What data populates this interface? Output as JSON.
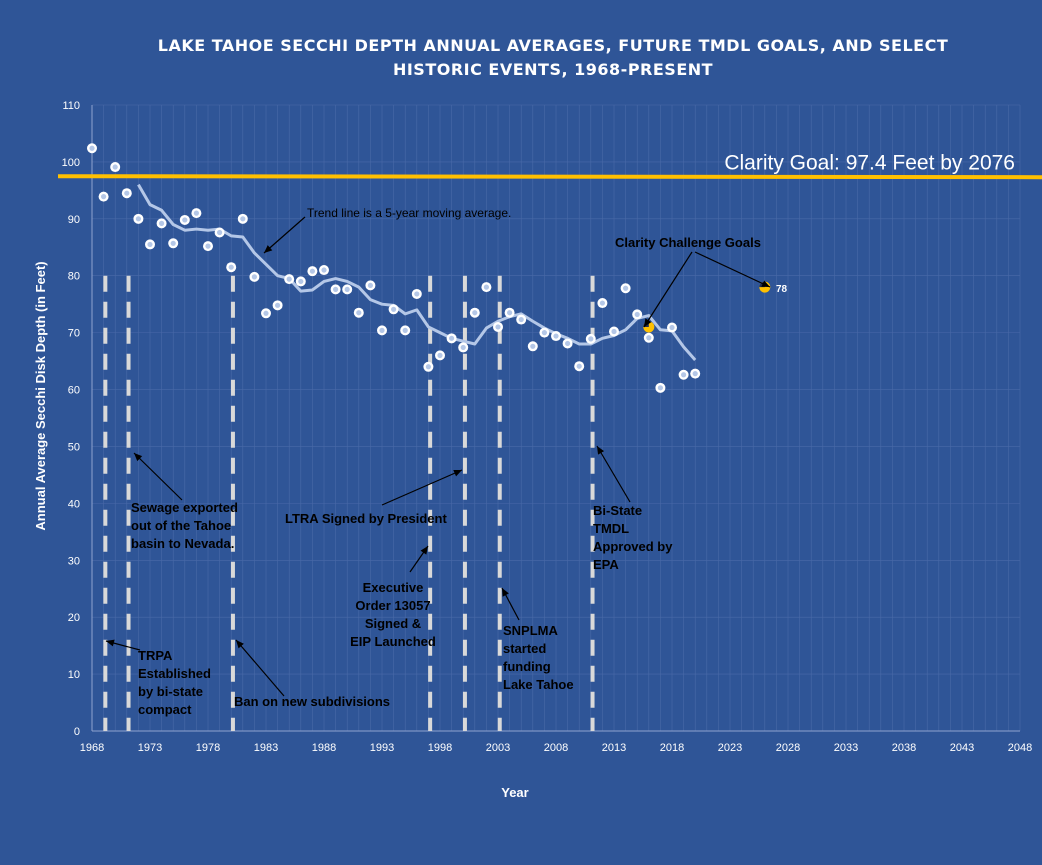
{
  "chart_data": {
    "type": "scatter",
    "title_lines": [
      "LAKE TAHOE SECCHI DEPTH ANNUAL AVERAGES, FUTURE TMDL GOALS, AND SELECT",
      "HISTORIC EVENTS, 1968-PRESENT"
    ],
    "xlabel": "Year",
    "ylabel": "Annual Average Secchi Disk Depth (in Feet)",
    "xlim": [
      1968,
      2048
    ],
    "ylim": [
      0,
      110
    ],
    "x_ticks": [
      1968,
      1973,
      1978,
      1983,
      1988,
      1993,
      1998,
      2003,
      2008,
      2013,
      2018,
      2023,
      2028,
      2033,
      2038,
      2043,
      2048
    ],
    "y_ticks": [
      0,
      10,
      20,
      30,
      40,
      50,
      60,
      70,
      80,
      90,
      100,
      110
    ],
    "grid": true,
    "series": [
      {
        "kind": "annual-average-points",
        "color": "#ffffff",
        "points": [
          [
            1968,
            102.4
          ],
          [
            1969,
            93.9
          ],
          [
            1970,
            99.1
          ],
          [
            1971,
            94.5
          ],
          [
            1972,
            90.0
          ],
          [
            1973,
            85.5
          ],
          [
            1974,
            89.2
          ],
          [
            1975,
            85.7
          ],
          [
            1976,
            89.8
          ],
          [
            1977,
            91.0
          ],
          [
            1978,
            85.2
          ],
          [
            1979,
            87.6
          ],
          [
            1980,
            81.5
          ],
          [
            1981,
            90.0
          ],
          [
            1982,
            79.8
          ],
          [
            1983,
            73.4
          ],
          [
            1984,
            74.8
          ],
          [
            1985,
            79.4
          ],
          [
            1986,
            79.0
          ],
          [
            1987,
            80.8
          ],
          [
            1988,
            81.0
          ],
          [
            1989,
            77.6
          ],
          [
            1990,
            77.6
          ],
          [
            1991,
            73.5
          ],
          [
            1992,
            78.3
          ],
          [
            1993,
            70.4
          ],
          [
            1994,
            74.1
          ],
          [
            1995,
            70.4
          ],
          [
            1996,
            76.8
          ],
          [
            1997,
            64.0
          ],
          [
            1998,
            66.0
          ],
          [
            1999,
            69.0
          ],
          [
            2000,
            67.4
          ],
          [
            2001,
            73.5
          ],
          [
            2002,
            78.0
          ],
          [
            2003,
            71.0
          ],
          [
            2004,
            73.5
          ],
          [
            2005,
            72.3
          ],
          [
            2006,
            67.6
          ],
          [
            2007,
            70.0
          ],
          [
            2008,
            69.4
          ],
          [
            2009,
            68.1
          ],
          [
            2010,
            64.1
          ],
          [
            2011,
            68.9
          ],
          [
            2012,
            75.2
          ],
          [
            2013,
            70.2
          ],
          [
            2014,
            77.8
          ],
          [
            2015,
            73.2
          ],
          [
            2016,
            69.1
          ],
          [
            2017,
            60.3
          ],
          [
            2018,
            70.9
          ],
          [
            2019,
            62.6
          ],
          [
            2020,
            62.8
          ]
        ]
      },
      {
        "kind": "five-year-moving-average",
        "color": "#b4c7e7",
        "points": [
          [
            1972,
            96.0
          ],
          [
            1973,
            92.5
          ],
          [
            1974,
            91.5
          ],
          [
            1975,
            89.0
          ],
          [
            1976,
            88.0
          ],
          [
            1977,
            88.2
          ],
          [
            1978,
            88.0
          ],
          [
            1979,
            88.2
          ],
          [
            1980,
            87.0
          ],
          [
            1981,
            86.8
          ],
          [
            1982,
            84.0
          ],
          [
            1983,
            82.0
          ],
          [
            1984,
            80.0
          ],
          [
            1985,
            79.5
          ],
          [
            1986,
            77.3
          ],
          [
            1987,
            77.5
          ],
          [
            1988,
            79.0
          ],
          [
            1989,
            79.5
          ],
          [
            1990,
            79.0
          ],
          [
            1991,
            78.0
          ],
          [
            1992,
            75.8
          ],
          [
            1993,
            75.0
          ],
          [
            1994,
            74.8
          ],
          [
            1995,
            73.3
          ],
          [
            1996,
            74.0
          ],
          [
            1997,
            71.0
          ],
          [
            1998,
            70.0
          ],
          [
            1999,
            69.0
          ],
          [
            2000,
            68.5
          ],
          [
            2001,
            68.0
          ],
          [
            2002,
            70.8
          ],
          [
            2003,
            72.0
          ],
          [
            2004,
            72.8
          ],
          [
            2005,
            73.3
          ],
          [
            2006,
            72.0
          ],
          [
            2007,
            70.8
          ],
          [
            2008,
            69.8
          ],
          [
            2009,
            69.0
          ],
          [
            2010,
            68.0
          ],
          [
            2011,
            68.0
          ],
          [
            2012,
            69.0
          ],
          [
            2013,
            69.5
          ],
          [
            2014,
            70.5
          ],
          [
            2015,
            72.5
          ],
          [
            2016,
            73.0
          ],
          [
            2017,
            70.5
          ],
          [
            2018,
            70.3
          ],
          [
            2019,
            67.5
          ],
          [
            2020,
            65.2
          ]
        ]
      }
    ],
    "clarity_goal": {
      "label": "Clarity Goal: 97.4 Feet by 2076",
      "value": 97.4,
      "color": "#ffc000"
    },
    "clarity_challenge": {
      "label": "Clarity Challenge Goals",
      "points": [
        {
          "x": 2016,
          "y": 71.0,
          "label": ""
        },
        {
          "x": 2026,
          "y": 78.0,
          "label": "78"
        }
      ],
      "color": "#ffc000"
    },
    "trend_note": "Trend line is a 5-year moving average.",
    "events": [
      {
        "x": 1969,
        "label": "TRPA\nEstablished\nby bi-state\ncompact"
      },
      {
        "x": 1971,
        "label": "Sewage exported\nout of the Tahoe\nbasin to Nevada."
      },
      {
        "x": 1980,
        "label": "Ban on new subdivisions"
      },
      {
        "x": 1997,
        "label": "Executive\nOrder 13057\nSigned &\nEIP Launched"
      },
      {
        "x": 2000,
        "label": "LTRA Signed by President"
      },
      {
        "x": 2003,
        "label": "SNPLMA\nstarted\nfunding\nLake Tahoe"
      },
      {
        "x": 2011,
        "label": "Bi-State\nTMDL\nApproved by\nEPA"
      }
    ]
  }
}
